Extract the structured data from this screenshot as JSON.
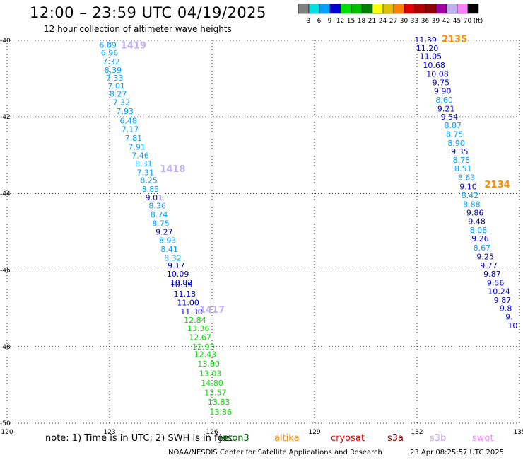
{
  "header": {
    "title": "12:00 – 23:59 UTC 04/19/2025",
    "subtitle": "12 hour collection of altimeter wave heights"
  },
  "color_scale": {
    "colors": [
      "#808080",
      "#00e0e0",
      "#00a0ff",
      "#0000d0",
      "#00e000",
      "#00c000",
      "#008000",
      "#ffff00",
      "#e0c000",
      "#ff8000",
      "#e00000",
      "#b00000",
      "#900000",
      "#a000a0",
      "#c0b0f0",
      "#ff80ff",
      "#000000"
    ],
    "labels": [
      "3",
      "6",
      "9",
      "12",
      "15",
      "18",
      "21",
      "24",
      "27",
      "30",
      "33",
      "36",
      "39",
      "42",
      "45",
      "70",
      "(ft)"
    ]
  },
  "footer": {
    "note": "note: 1) Time is in UTC; 2) SWH is in feet",
    "credit": "NOAA/NESDIS Center for Satellite Applications and Research",
    "timestamp": "23 Apr 08:25:57 UTC 2025"
  },
  "satellites": [
    {
      "name": "jason3",
      "color": "#006400"
    },
    {
      "name": "altika",
      "color": "#ff8c00"
    },
    {
      "name": "cryosat",
      "color": "#e00000"
    },
    {
      "name": "s3a",
      "color": "#8b0000"
    },
    {
      "name": "s3b",
      "color": "#c0b0f0"
    },
    {
      "name": "swot",
      "color": "#ff80ff"
    }
  ],
  "chart_data": {
    "type": "scatter",
    "xlim": [
      120,
      135
    ],
    "ylim": [
      -50,
      -40
    ],
    "xticks": [
      "120",
      "123",
      "126",
      "129",
      "132",
      "135"
    ],
    "yticks": [
      "-40",
      "-42",
      "-44",
      "-46",
      "-48",
      "-50"
    ],
    "grid": true,
    "pass_labels": [
      {
        "text": "1419",
        "x": 123.7,
        "y": -40.12,
        "color": "#c0b0f0"
      },
      {
        "text": "1418",
        "x": 124.85,
        "y": -43.35,
        "color": "#c0b0f0"
      },
      {
        "text": "1417",
        "x": 126.0,
        "y": -47.02,
        "color": "#c0b0f0"
      },
      {
        "text": "2135",
        "x": 133.1,
        "y": -39.95,
        "color": "#ff8c00"
      },
      {
        "text": "2134",
        "x": 134.35,
        "y": -43.75,
        "color": "#ff8c00"
      }
    ],
    "series": [
      {
        "name": "s3b",
        "points": [
          {
            "x": 122.95,
            "y": -40.12,
            "v": "6.89"
          },
          {
            "x": 123.0,
            "y": -40.32,
            "v": "6.96"
          },
          {
            "x": 123.05,
            "y": -40.55,
            "v": "7.32"
          },
          {
            "x": 123.1,
            "y": -40.78,
            "v": "8.39"
          },
          {
            "x": 123.15,
            "y": -40.98,
            "v": "7.33"
          },
          {
            "x": 123.2,
            "y": -41.18,
            "v": "7.01"
          },
          {
            "x": 123.25,
            "y": -41.4,
            "v": "8.27"
          },
          {
            "x": 123.35,
            "y": -41.62,
            "v": "7.32"
          },
          {
            "x": 123.45,
            "y": -41.85,
            "v": "7.93"
          },
          {
            "x": 123.55,
            "y": -42.1,
            "v": "6.48"
          },
          {
            "x": 123.6,
            "y": -42.32,
            "v": "7.17"
          },
          {
            "x": 123.7,
            "y": -42.55,
            "v": "7.81"
          },
          {
            "x": 123.8,
            "y": -42.78,
            "v": "7.91"
          },
          {
            "x": 123.9,
            "y": -43.0,
            "v": "7.46"
          },
          {
            "x": 124.0,
            "y": -43.22,
            "v": "8.31"
          },
          {
            "x": 124.05,
            "y": -43.45,
            "v": "7.31"
          },
          {
            "x": 124.15,
            "y": -43.65,
            "v": "8.25"
          },
          {
            "x": 124.2,
            "y": -43.88,
            "v": "8.85"
          },
          {
            "x": 124.3,
            "y": -44.1,
            "v": "9.01"
          },
          {
            "x": 124.4,
            "y": -44.32,
            "v": "8.36"
          },
          {
            "x": 124.45,
            "y": -44.55,
            "v": "8.74"
          },
          {
            "x": 124.5,
            "y": -44.78,
            "v": "8.75"
          },
          {
            "x": 124.6,
            "y": -45.0,
            "v": "9.27"
          },
          {
            "x": 124.7,
            "y": -45.22,
            "v": "8.93"
          },
          {
            "x": 124.75,
            "y": -45.45,
            "v": "8.41"
          },
          {
            "x": 124.85,
            "y": -45.68,
            "v": "8.32"
          },
          {
            "x": 124.95,
            "y": -45.88,
            "v": "9.17"
          },
          {
            "x": 125.0,
            "y": -46.1,
            "v": "10.09"
          },
          {
            "x": 125.1,
            "y": -46.32,
            "v": "10.82"
          },
          {
            "x": 125.1,
            "y": -46.38,
            "v": "10.39"
          },
          {
            "x": 125.2,
            "y": -46.62,
            "v": "11.18"
          },
          {
            "x": 125.3,
            "y": -46.85,
            "v": "11.00"
          },
          {
            "x": 125.4,
            "y": -47.08,
            "v": "11.30"
          },
          {
            "x": 125.5,
            "y": -47.3,
            "v": "12.84"
          },
          {
            "x": 125.6,
            "y": -47.52,
            "v": "13.36"
          },
          {
            "x": 125.65,
            "y": -47.75,
            "v": "12.67"
          },
          {
            "x": 125.75,
            "y": -48.0,
            "v": "12.93"
          },
          {
            "x": 125.8,
            "y": -48.2,
            "v": "12.43"
          },
          {
            "x": 125.9,
            "y": -48.45,
            "v": "13.00"
          },
          {
            "x": 125.95,
            "y": -48.7,
            "v": "13.03"
          },
          {
            "x": 126.0,
            "y": -48.95,
            "v": "14.80"
          },
          {
            "x": 126.1,
            "y": -49.2,
            "v": "13.57"
          },
          {
            "x": 126.2,
            "y": -49.45,
            "v": "13.83"
          },
          {
            "x": 126.25,
            "y": -49.7,
            "v": "13.86"
          }
        ]
      },
      {
        "name": "altika",
        "points": [
          {
            "x": 132.25,
            "y": -39.98,
            "v": "11.39"
          },
          {
            "x": 132.3,
            "y": -40.2,
            "v": "11.20"
          },
          {
            "x": 132.4,
            "y": -40.42,
            "v": "11.05"
          },
          {
            "x": 132.5,
            "y": -40.65,
            "v": "10.68"
          },
          {
            "x": 132.6,
            "y": -40.88,
            "v": "10.08"
          },
          {
            "x": 132.7,
            "y": -41.1,
            "v": "9.75"
          },
          {
            "x": 132.75,
            "y": -41.32,
            "v": "9.90"
          },
          {
            "x": 132.8,
            "y": -41.55,
            "v": "8.60"
          },
          {
            "x": 132.85,
            "y": -41.78,
            "v": "9.21"
          },
          {
            "x": 132.95,
            "y": -42.0,
            "v": "9.54"
          },
          {
            "x": 133.05,
            "y": -42.22,
            "v": "8.87"
          },
          {
            "x": 133.1,
            "y": -42.45,
            "v": "8.75"
          },
          {
            "x": 133.15,
            "y": -42.68,
            "v": "8.90"
          },
          {
            "x": 133.25,
            "y": -42.9,
            "v": "9.35"
          },
          {
            "x": 133.3,
            "y": -43.12,
            "v": "8.78"
          },
          {
            "x": 133.35,
            "y": -43.35,
            "v": "8.51"
          },
          {
            "x": 133.45,
            "y": -43.58,
            "v": "8.63"
          },
          {
            "x": 133.5,
            "y": -43.82,
            "v": "9.10"
          },
          {
            "x": 133.55,
            "y": -44.05,
            "v": "8.42"
          },
          {
            "x": 133.6,
            "y": -44.28,
            "v": "8.88"
          },
          {
            "x": 133.7,
            "y": -44.5,
            "v": "9.86"
          },
          {
            "x": 133.75,
            "y": -44.72,
            "v": "9.48"
          },
          {
            "x": 133.8,
            "y": -44.95,
            "v": "8.08"
          },
          {
            "x": 133.85,
            "y": -45.18,
            "v": "9.26"
          },
          {
            "x": 133.9,
            "y": -45.42,
            "v": "8.67"
          },
          {
            "x": 134.0,
            "y": -45.65,
            "v": "9.25"
          },
          {
            "x": 134.1,
            "y": -45.88,
            "v": "9.77"
          },
          {
            "x": 134.2,
            "y": -46.1,
            "v": "9.87"
          },
          {
            "x": 134.3,
            "y": -46.33,
            "v": "9.56"
          },
          {
            "x": 134.4,
            "y": -46.55,
            "v": "10.24"
          },
          {
            "x": 134.5,
            "y": -46.78,
            "v": "9.87"
          },
          {
            "x": 134.6,
            "y": -47.0,
            "v": "9.8"
          },
          {
            "x": 134.7,
            "y": -47.22,
            "v": "9."
          },
          {
            "x": 134.8,
            "y": -47.45,
            "v": "10"
          }
        ]
      }
    ]
  }
}
